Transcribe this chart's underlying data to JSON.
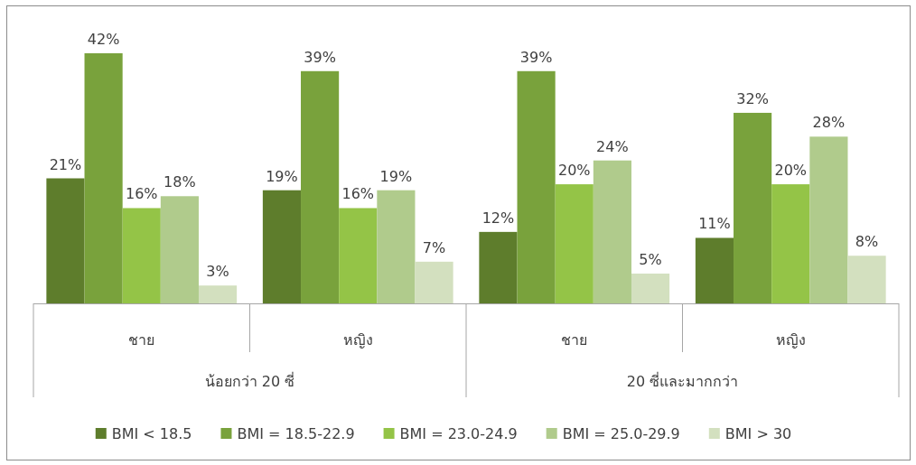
{
  "chart_data": {
    "type": "bar",
    "categories": [
      "ชาย",
      "หญิง",
      "ชาย",
      "หญิง"
    ],
    "annotations": [
      "น้อยกว่า 20 ซี่",
      "20 ซี่และมากกว่า"
    ],
    "series": [
      {
        "name": "BMI < 18.5",
        "color": "#5e7d2c",
        "values": [
          21,
          19,
          12,
          11
        ],
        "value_labels": [
          "21%",
          "19%",
          "12%",
          "11%"
        ]
      },
      {
        "name": "BMI = 18.5-22.9",
        "color": "#79a23c",
        "values": [
          42,
          39,
          39,
          32
        ],
        "value_labels": [
          "42%",
          "39%",
          "39%",
          "32%"
        ]
      },
      {
        "name": "BMI = 23.0-24.9",
        "color": "#94c447",
        "values": [
          16,
          16,
          20,
          20
        ],
        "value_labels": [
          "16%",
          "16%",
          "20%",
          "20%"
        ]
      },
      {
        "name": "BMI = 25.0-29.9",
        "color": "#b0cb8c",
        "values": [
          18,
          19,
          24,
          28
        ],
        "value_labels": [
          "18%",
          "19%",
          "24%",
          "28%"
        ]
      },
      {
        "name": "BMI > 30",
        "color": "#d3e0bf",
        "values": [
          3,
          7,
          5,
          8
        ],
        "value_labels": [
          "3%",
          "7%",
          "5%",
          "8%"
        ]
      }
    ],
    "legend": "bottom"
  }
}
